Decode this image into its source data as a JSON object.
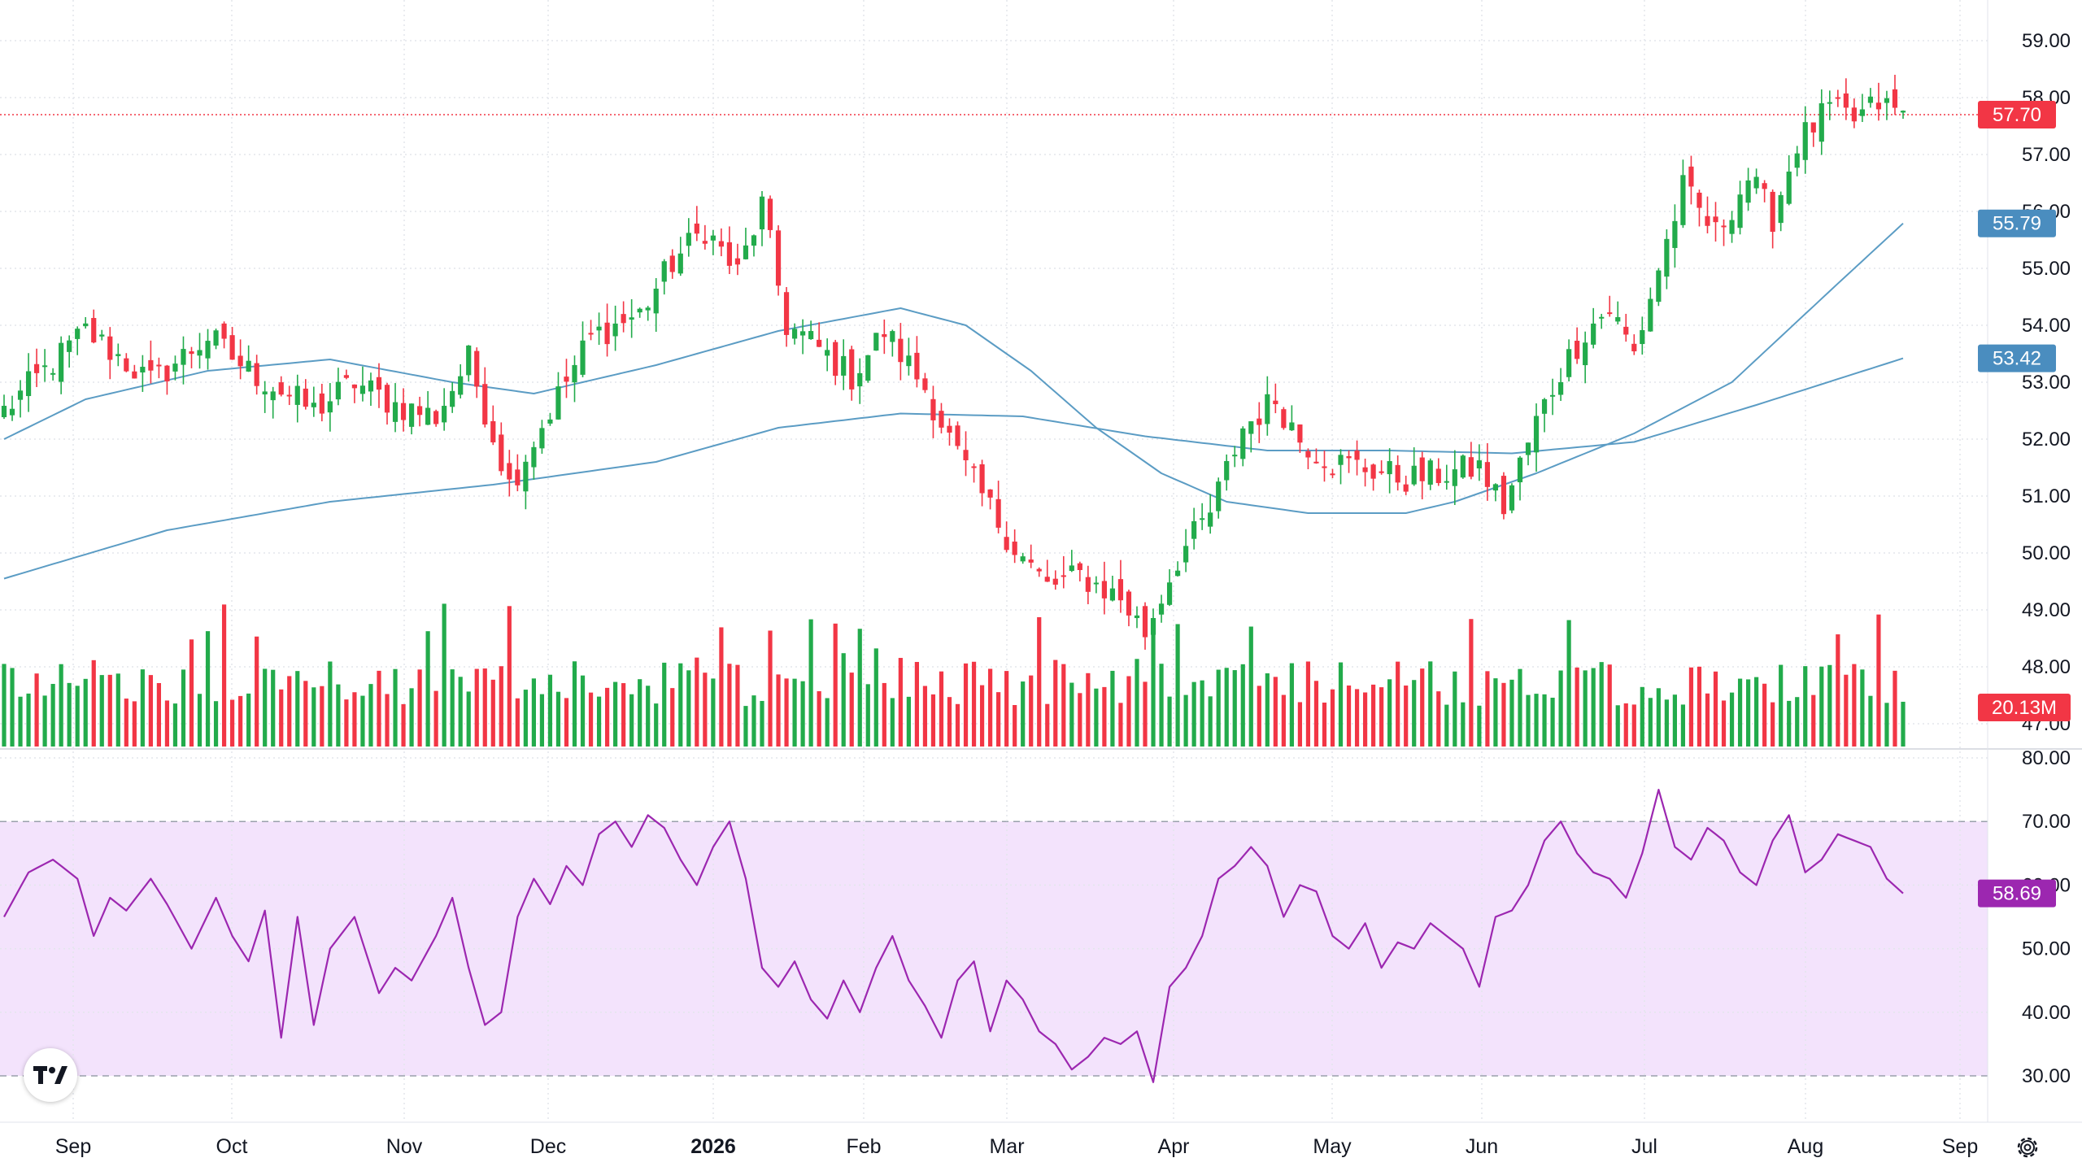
{
  "colors": {
    "up": "#22ab4b",
    "down": "#f23645",
    "ma": "#5b9cc4",
    "rsi": "#9c27b0",
    "rsi_band": "#f3e3fc",
    "grid": "#e3e6ec",
    "text": "#131722",
    "volume_badge": "#f23645",
    "ma_badge": "#4a8dbf"
  },
  "icons": {
    "logo": "tradingview-logo-icon",
    "settings": "gear-icon"
  },
  "chart_data": {
    "type": "candlestick",
    "price_axis": {
      "ticks": [
        "59.00",
        "58.00",
        "57.00",
        "56.00",
        "55.00",
        "54.00",
        "53.00",
        "52.00",
        "51.00",
        "50.00",
        "49.00",
        "48.00",
        "47.00"
      ],
      "range": [
        46.8,
        59.4
      ]
    },
    "rsi_axis": {
      "ticks": [
        "80.00",
        "70.00",
        "60.00",
        "50.00",
        "40.00",
        "30.00"
      ],
      "range": [
        26,
        81
      ],
      "band": [
        30,
        70
      ]
    },
    "x_labels": [
      "Sep",
      "Oct",
      "Nov",
      "Dec",
      "2026",
      "Feb",
      "Mar",
      "Apr",
      "May",
      "Jun",
      "Jul",
      "Aug",
      "Sep"
    ],
    "x_label_bold": "2026",
    "badges": {
      "last_price": "57.70",
      "ma_fast": "55.79",
      "ma_slow": "53.42",
      "volume": "20.13M",
      "rsi": "58.69"
    },
    "close_anchors": [
      [
        0,
        52.5
      ],
      [
        10,
        53.9
      ],
      [
        18,
        53.0
      ],
      [
        25,
        53.8
      ],
      [
        30,
        53.2
      ],
      [
        38,
        52.5
      ],
      [
        43,
        53.0
      ],
      [
        48,
        52.6
      ],
      [
        53,
        52.4
      ],
      [
        57,
        53.4
      ],
      [
        62,
        51.2
      ],
      [
        67,
        52.5
      ],
      [
        72,
        53.8
      ],
      [
        78,
        54.2
      ],
      [
        82,
        55.1
      ],
      [
        86,
        55.7
      ],
      [
        90,
        54.9
      ],
      [
        93,
        56.1
      ],
      [
        96,
        54.0
      ],
      [
        99,
        53.7
      ],
      [
        104,
        53.1
      ],
      [
        108,
        53.9
      ],
      [
        113,
        52.9
      ],
      [
        117,
        51.7
      ],
      [
        120,
        51.0
      ],
      [
        124,
        50.1
      ],
      [
        128,
        49.4
      ],
      [
        132,
        49.6
      ],
      [
        137,
        49.2
      ],
      [
        140,
        48.6
      ],
      [
        144,
        49.9
      ],
      [
        148,
        50.7
      ],
      [
        152,
        52.2
      ],
      [
        156,
        52.7
      ],
      [
        159,
        52.0
      ],
      [
        163,
        51.6
      ],
      [
        167,
        51.5
      ],
      [
        172,
        51.3
      ],
      [
        177,
        51.4
      ],
      [
        181,
        51.5
      ],
      [
        184,
        50.8
      ],
      [
        188,
        52.3
      ],
      [
        191,
        53.2
      ],
      [
        194,
        53.9
      ],
      [
        197,
        54.3
      ],
      [
        200,
        53.5
      ],
      [
        203,
        55.0
      ],
      [
        206,
        56.4
      ],
      [
        210,
        55.6
      ],
      [
        214,
        56.6
      ],
      [
        217,
        55.9
      ],
      [
        220,
        57.2
      ],
      [
        224,
        57.8
      ],
      [
        227,
        57.6
      ],
      [
        230,
        57.9
      ],
      [
        233,
        57.7
      ]
    ],
    "ma_fast_anchors": [
      [
        0,
        52.0
      ],
      [
        10,
        52.7
      ],
      [
        25,
        53.2
      ],
      [
        40,
        53.4
      ],
      [
        55,
        53.0
      ],
      [
        65,
        52.8
      ],
      [
        80,
        53.3
      ],
      [
        95,
        53.9
      ],
      [
        110,
        54.3
      ],
      [
        118,
        54.0
      ],
      [
        126,
        53.2
      ],
      [
        134,
        52.2
      ],
      [
        142,
        51.4
      ],
      [
        150,
        50.9
      ],
      [
        160,
        50.7
      ],
      [
        172,
        50.7
      ],
      [
        178,
        50.9
      ],
      [
        188,
        51.4
      ],
      [
        200,
        52.1
      ],
      [
        212,
        53.0
      ],
      [
        224,
        54.6
      ],
      [
        233,
        55.79
      ]
    ],
    "ma_slow_anchors": [
      [
        0,
        49.55
      ],
      [
        20,
        50.4
      ],
      [
        40,
        50.9
      ],
      [
        60,
        51.2
      ],
      [
        80,
        51.6
      ],
      [
        95,
        52.2
      ],
      [
        110,
        52.45
      ],
      [
        125,
        52.4
      ],
      [
        140,
        52.05
      ],
      [
        155,
        51.8
      ],
      [
        170,
        51.8
      ],
      [
        185,
        51.75
      ],
      [
        200,
        51.95
      ],
      [
        215,
        52.6
      ],
      [
        233,
        53.42
      ]
    ],
    "volume_range": [
      10,
      45
    ],
    "volume_last": "20.13M",
    "rsi_anchors": [
      [
        0,
        55
      ],
      [
        3,
        62
      ],
      [
        6,
        64
      ],
      [
        9,
        61
      ],
      [
        11,
        52
      ],
      [
        13,
        58
      ],
      [
        15,
        56
      ],
      [
        18,
        61
      ],
      [
        20,
        57
      ],
      [
        23,
        50
      ],
      [
        26,
        58
      ],
      [
        28,
        52
      ],
      [
        30,
        48
      ],
      [
        32,
        56
      ],
      [
        34,
        36
      ],
      [
        36,
        55
      ],
      [
        38,
        38
      ],
      [
        40,
        50
      ],
      [
        43,
        55
      ],
      [
        46,
        43
      ],
      [
        48,
        47
      ],
      [
        50,
        45
      ],
      [
        53,
        52
      ],
      [
        55,
        58
      ],
      [
        57,
        47
      ],
      [
        59,
        38
      ],
      [
        61,
        40
      ],
      [
        63,
        55
      ],
      [
        65,
        61
      ],
      [
        67,
        57
      ],
      [
        69,
        63
      ],
      [
        71,
        60
      ],
      [
        73,
        68
      ],
      [
        75,
        70
      ],
      [
        77,
        66
      ],
      [
        79,
        71
      ],
      [
        81,
        69
      ],
      [
        83,
        64
      ],
      [
        85,
        60
      ],
      [
        87,
        66
      ],
      [
        89,
        70
      ],
      [
        91,
        61
      ],
      [
        93,
        47
      ],
      [
        95,
        44
      ],
      [
        97,
        48
      ],
      [
        99,
        42
      ],
      [
        101,
        39
      ],
      [
        103,
        45
      ],
      [
        105,
        40
      ],
      [
        107,
        47
      ],
      [
        109,
        52
      ],
      [
        111,
        45
      ],
      [
        113,
        41
      ],
      [
        115,
        36
      ],
      [
        117,
        45
      ],
      [
        119,
        48
      ],
      [
        121,
        37
      ],
      [
        123,
        45
      ],
      [
        125,
        42
      ],
      [
        127,
        37
      ],
      [
        129,
        35
      ],
      [
        131,
        31
      ],
      [
        133,
        33
      ],
      [
        135,
        36
      ],
      [
        137,
        35
      ],
      [
        139,
        37
      ],
      [
        141,
        29
      ],
      [
        143,
        44
      ],
      [
        145,
        47
      ],
      [
        147,
        52
      ],
      [
        149,
        61
      ],
      [
        151,
        63
      ],
      [
        153,
        66
      ],
      [
        155,
        63
      ],
      [
        157,
        55
      ],
      [
        159,
        60
      ],
      [
        161,
        59
      ],
      [
        163,
        52
      ],
      [
        165,
        50
      ],
      [
        167,
        54
      ],
      [
        169,
        47
      ],
      [
        171,
        51
      ],
      [
        173,
        50
      ],
      [
        175,
        54
      ],
      [
        177,
        52
      ],
      [
        179,
        50
      ],
      [
        181,
        44
      ],
      [
        183,
        55
      ],
      [
        185,
        56
      ],
      [
        187,
        60
      ],
      [
        189,
        67
      ],
      [
        191,
        70
      ],
      [
        193,
        65
      ],
      [
        195,
        62
      ],
      [
        197,
        61
      ],
      [
        199,
        58
      ],
      [
        201,
        65
      ],
      [
        203,
        75
      ],
      [
        205,
        66
      ],
      [
        207,
        64
      ],
      [
        209,
        69
      ],
      [
        211,
        67
      ],
      [
        213,
        62
      ],
      [
        215,
        60
      ],
      [
        217,
        67
      ],
      [
        219,
        71
      ],
      [
        221,
        62
      ],
      [
        223,
        64
      ],
      [
        225,
        68
      ],
      [
        227,
        67
      ],
      [
        229,
        66
      ],
      [
        231,
        61
      ],
      [
        233,
        58.69
      ]
    ]
  }
}
